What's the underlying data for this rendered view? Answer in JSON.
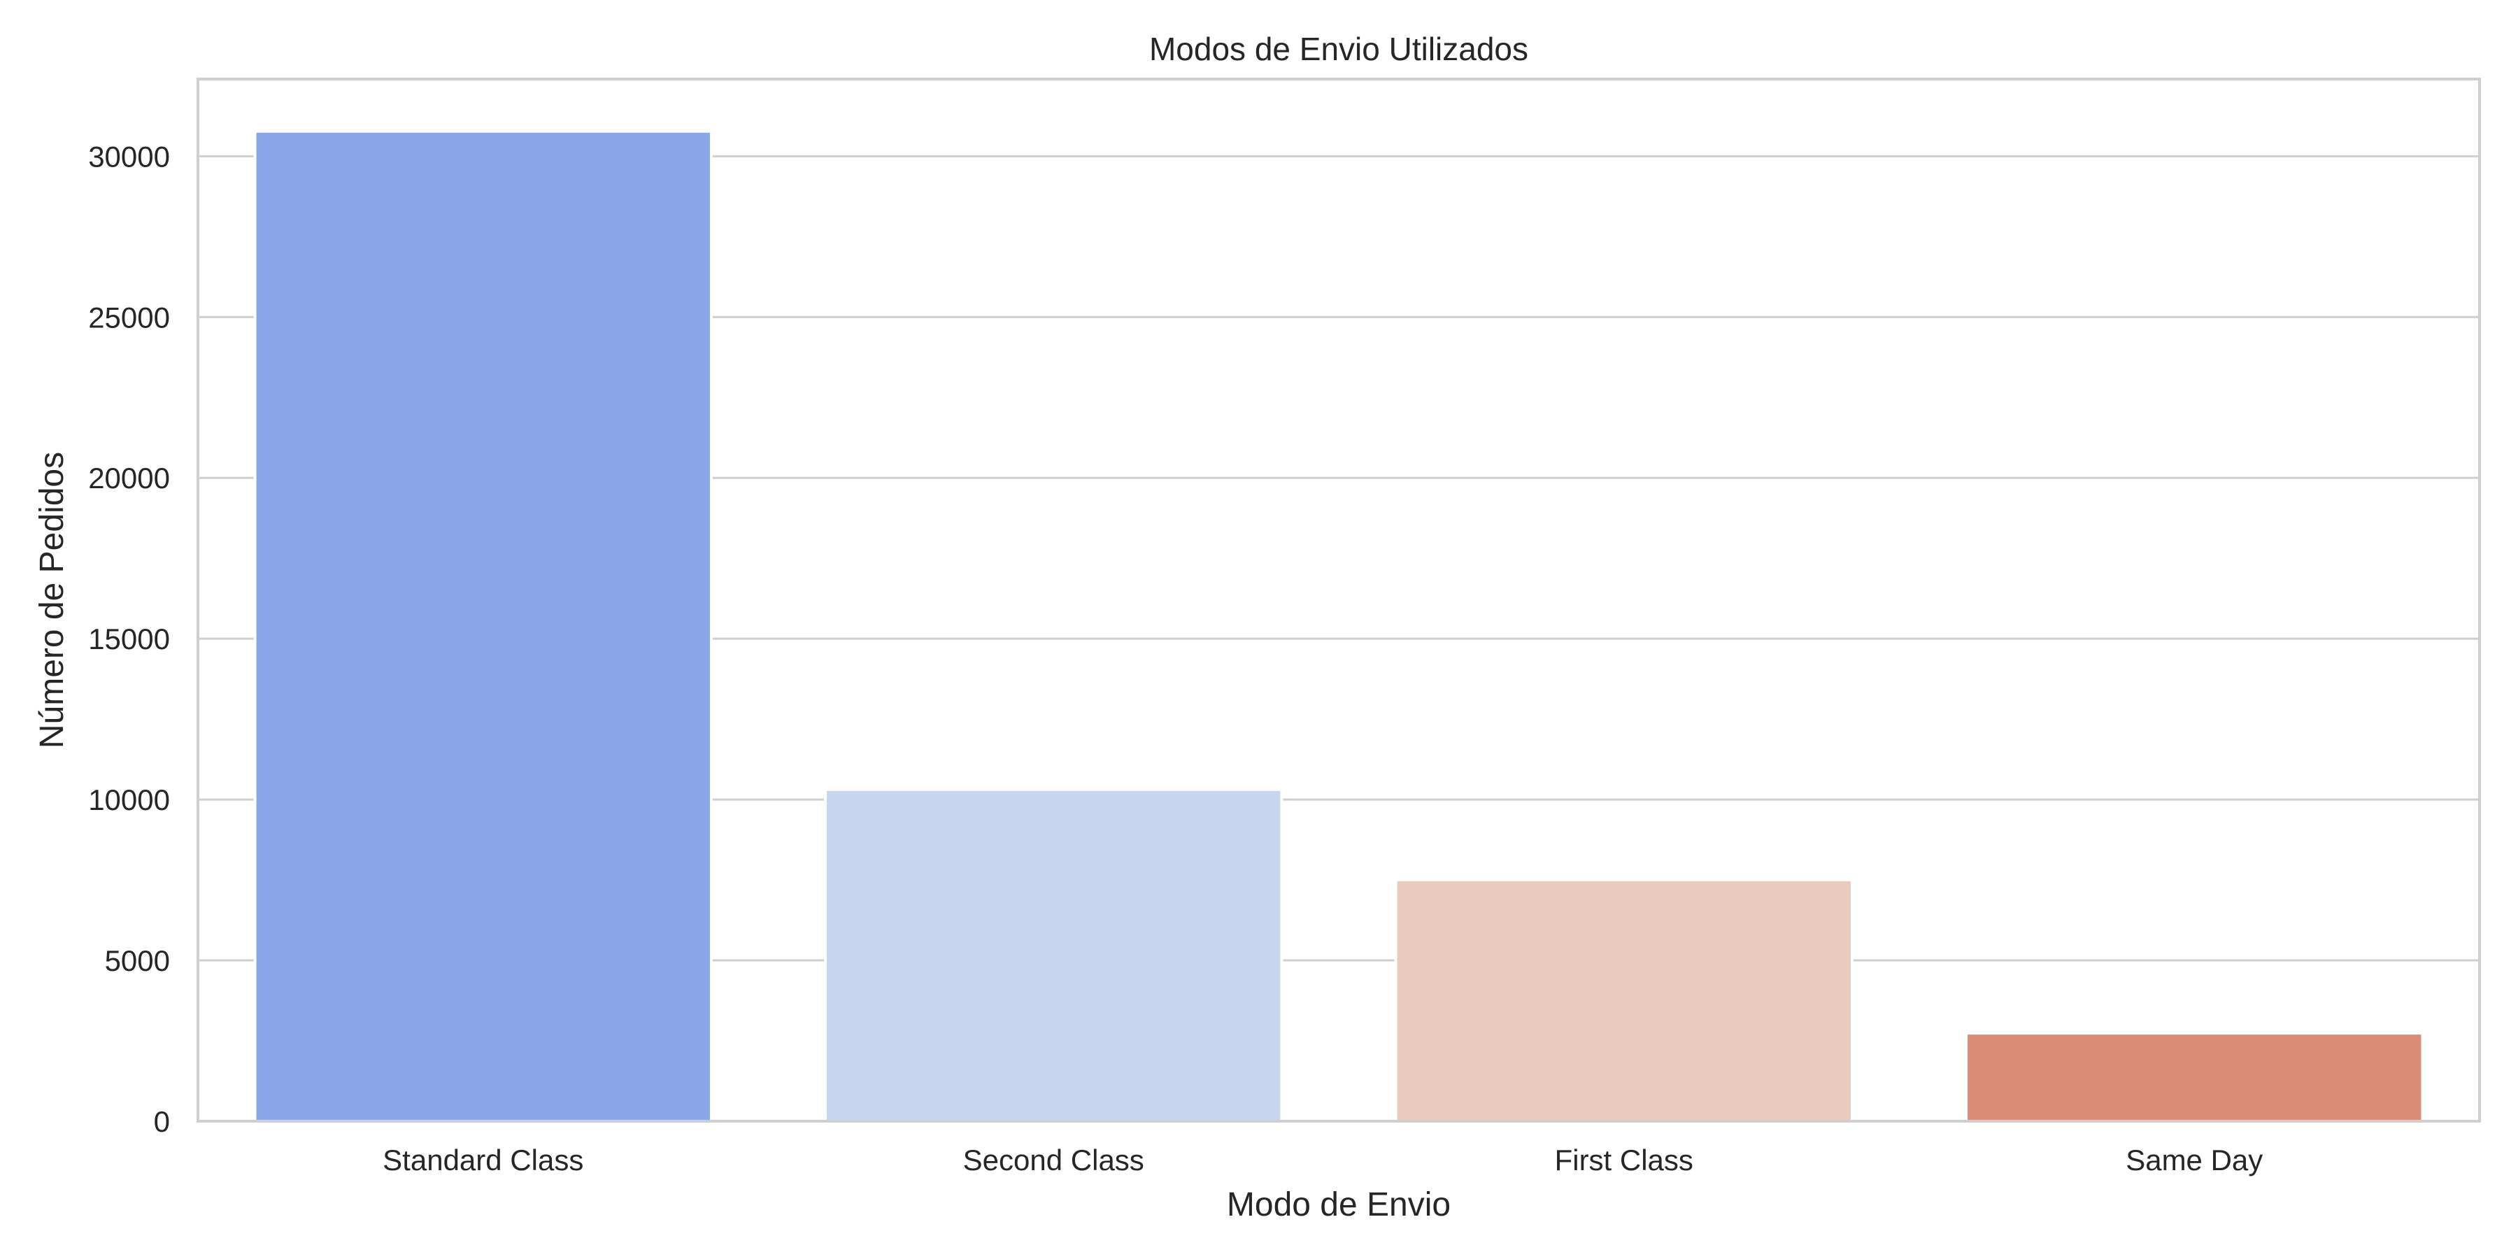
{
  "chart_data": {
    "type": "bar",
    "title": "Modos de Envio Utilizados",
    "xlabel": "Modo de Envio",
    "ylabel": "Número de Pedidos",
    "categories": [
      "Standard Class",
      "Second Class",
      "First Class",
      "Same Day"
    ],
    "values": [
      30775,
      10309,
      7505,
      2737
    ],
    "colors": [
      "#8aa6e8",
      "#c7d5ef",
      "#eaccbe",
      "#dd8d77"
    ],
    "ylim": [
      0,
      32400
    ],
    "yticks": [
      0,
      5000,
      10000,
      15000,
      20000,
      25000,
      30000
    ],
    "ytick_labels": [
      "0",
      "5000",
      "10000",
      "15000",
      "20000",
      "25000",
      "30000"
    ],
    "grid": "horizontal",
    "legend": "none"
  }
}
